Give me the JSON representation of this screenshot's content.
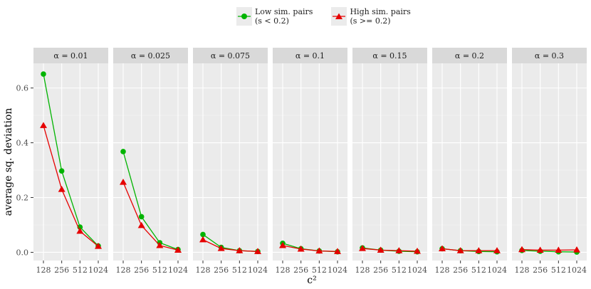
{
  "chart_data": {
    "type": "line",
    "facet_variable": "alpha",
    "facets": [
      "α = 0.01",
      "α = 0.025",
      "α = 0.075",
      "α = 0.1",
      "α = 0.15",
      "α = 0.2",
      "α = 0.3"
    ],
    "x": [
      "128",
      "256",
      "512",
      "1024"
    ],
    "xlabel": "c²",
    "ylabel": "average sq. deviation",
    "ylim": [
      -0.03,
      0.69
    ],
    "yticks": [
      0.0,
      0.2,
      0.4,
      0.6
    ],
    "ytick_labels": [
      "0.0",
      "0.2",
      "0.4",
      "0.6"
    ],
    "grid": true,
    "legend_position": "top",
    "series": [
      {
        "name": "Low sim. pairs\n(s < 0.2)",
        "color": "#00b400",
        "marker": "circle",
        "values": [
          [
            0.651,
            0.297,
            0.092,
            0.023
          ],
          [
            0.368,
            0.13,
            0.035,
            0.01
          ],
          [
            0.065,
            0.018,
            0.006,
            0.003
          ],
          [
            0.033,
            0.013,
            0.005,
            0.002
          ],
          [
            0.016,
            0.008,
            0.004,
            0.002
          ],
          [
            0.013,
            0.006,
            0.003,
            0.002
          ],
          [
            0.007,
            0.004,
            0.002,
            0.001
          ]
        ]
      },
      {
        "name": "High sim. pairs\n(s >= 0.2)",
        "color": "#e60000",
        "marker": "triangle",
        "values": [
          [
            0.463,
            0.23,
            0.077,
            0.022
          ],
          [
            0.256,
            0.098,
            0.025,
            0.008
          ],
          [
            0.046,
            0.014,
            0.006,
            0.003
          ],
          [
            0.025,
            0.012,
            0.005,
            0.003
          ],
          [
            0.014,
            0.008,
            0.006,
            0.004
          ],
          [
            0.013,
            0.006,
            0.006,
            0.006
          ],
          [
            0.01,
            0.008,
            0.008,
            0.009
          ]
        ]
      }
    ]
  }
}
